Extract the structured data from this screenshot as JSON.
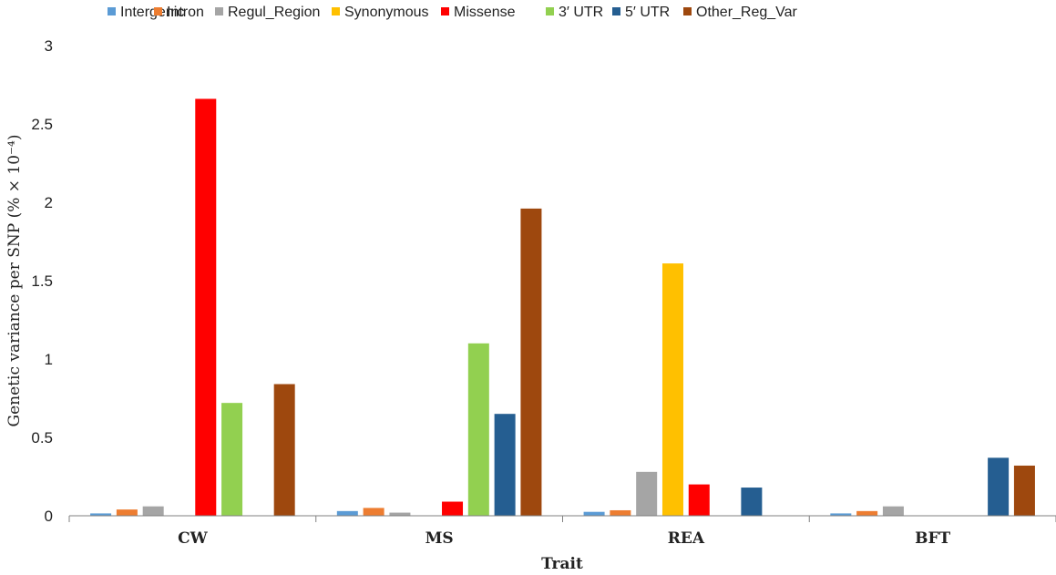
{
  "chart_data": {
    "type": "bar",
    "categories": [
      "CW",
      "MS",
      "REA",
      "BFT"
    ],
    "xlabel": "Trait",
    "ylabel": "Genetic variance per SNP (% × 10⁻⁴)",
    "ylim": [
      0,
      3
    ],
    "yticks": [
      "0",
      "0.5",
      "1",
      "1.5",
      "2",
      "2.5",
      "3"
    ],
    "grid": false,
    "legend_position": "top",
    "series": [
      {
        "name": "Intergenic",
        "color": "#5B9BD5",
        "values": [
          0.015,
          0.03,
          0.025,
          0.015
        ]
      },
      {
        "name": "Intron",
        "color": "#ED7D31",
        "values": [
          0.04,
          0.05,
          0.035,
          0.03
        ]
      },
      {
        "name": "Regul_Region",
        "color": "#A5A5A5",
        "values": [
          0.06,
          0.02,
          0.28,
          0.06
        ]
      },
      {
        "name": "Synonymous",
        "color": "#FFC000",
        "values": [
          0,
          0,
          1.61,
          0
        ]
      },
      {
        "name": "Missense",
        "color": "#FF0000",
        "values": [
          2.66,
          0.09,
          0.2,
          0
        ]
      },
      {
        "name": "3′ UTR",
        "color": "#92D050",
        "values": [
          0.72,
          1.1,
          0,
          0
        ]
      },
      {
        "name": "5′ UTR",
        "color": "#255E91",
        "values": [
          0,
          0.65,
          0.18,
          0.37
        ]
      },
      {
        "name": "Other_Reg_Var",
        "color": "#9E480E",
        "values": [
          0.84,
          1.96,
          0,
          0.32
        ]
      }
    ]
  }
}
